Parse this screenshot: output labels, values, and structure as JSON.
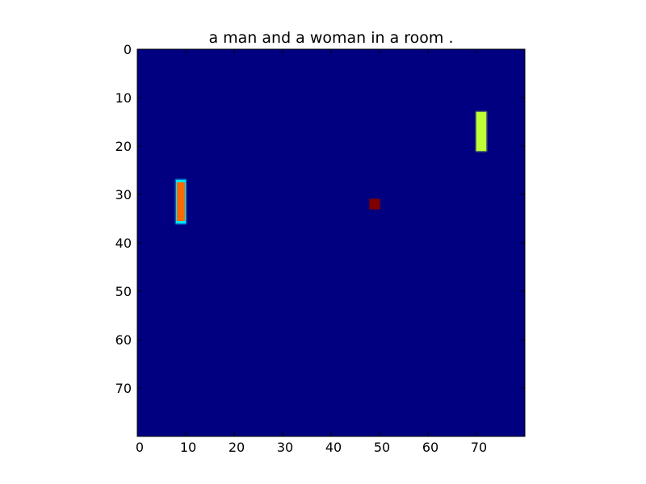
{
  "chart_data": {
    "type": "heatmap",
    "title": "a man and a woman in a room .",
    "xlabel": "",
    "ylabel": "",
    "xlim": [
      0,
      80
    ],
    "ylim": [
      80,
      0
    ],
    "y_axis_inverted": true,
    "grid": false,
    "colormap": "jet",
    "background_color": "#000080",
    "x_ticks": [
      0,
      10,
      20,
      30,
      40,
      50,
      60,
      70
    ],
    "y_ticks": [
      0,
      10,
      20,
      30,
      40,
      50,
      60,
      70
    ],
    "regions": [
      {
        "col_start": 8,
        "col_end": 10,
        "row_start": 27,
        "row_end": 36,
        "core_color": "#ff6a00",
        "edge_color": "#00e5ff"
      },
      {
        "col_start": 70,
        "col_end": 72,
        "row_start": 13,
        "row_end": 21,
        "core_color": "#c0ff36",
        "edge_color": "#c0ff36"
      },
      {
        "col_start": 48,
        "col_end": 50,
        "row_start": 31,
        "row_end": 33,
        "core_color": "#800000",
        "edge_color": "#800000"
      }
    ]
  }
}
